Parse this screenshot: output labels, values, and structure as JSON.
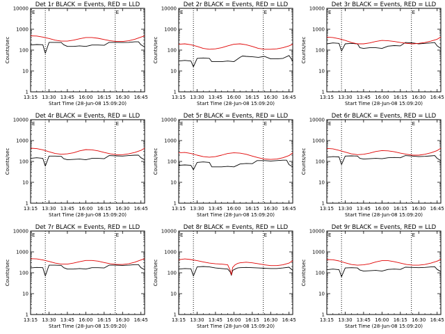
{
  "colors": {
    "events": "#000000",
    "lld": "#e00000",
    "background": "#ffffff",
    "axes": "#000000"
  },
  "chart_data": {
    "type": "line",
    "scale": "log-y",
    "x_tick_labels": [
      "13:15",
      "13:30",
      "13:45",
      "16:00",
      "16:15",
      "16:30",
      "16:45"
    ],
    "x_ticks_minutes": [
      0,
      15,
      30,
      45,
      60,
      75,
      90
    ],
    "xlim_minutes": [
      0,
      93
    ],
    "ylim": [
      1,
      10000
    ],
    "y_tick_labels": [
      "1",
      "10",
      "100",
      "1000",
      "10000"
    ],
    "y_ticks": [
      1,
      10,
      100,
      1000,
      10000
    ],
    "ylabel": "Counts/sec",
    "xlabel": "Start Time (28-Jun-08 15:09:20)",
    "vertical_marks_minutes": [
      12,
      69
    ],
    "corner_marker": "E",
    "panels": [
      {
        "title": "Det 1r  BLACK = Events, RED = LLD",
        "series": [
          {
            "name": "Events",
            "color": "#000000",
            "x": [
              0,
              5,
              10,
              12,
              15,
              20,
              25,
              27,
              30,
              35,
              40,
              45,
              50,
              55,
              60,
              64,
              70,
              75,
              80,
              85,
              88,
              90,
              93
            ],
            "y": [
              175,
              185,
              180,
              70,
              235,
              235,
              230,
              180,
              150,
              150,
              160,
              150,
              175,
              175,
              170,
              235,
              235,
              230,
              235,
              250,
              250,
              180,
              140
            ]
          },
          {
            "name": "LLD",
            "color": "#e00000",
            "x": [
              0,
              5,
              10,
              15,
              20,
              25,
              30,
              35,
              40,
              45,
              50,
              55,
              60,
              65,
              70,
              75,
              80,
              85,
              90,
              93
            ],
            "y": [
              480,
              470,
              420,
              360,
              300,
              270,
              270,
              300,
              350,
              400,
              400,
              370,
              320,
              280,
              260,
              260,
              280,
              330,
              420,
              480
            ]
          }
        ]
      },
      {
        "title": "Det 2r  BLACK = Events, RED = LLD",
        "series": [
          {
            "name": "Events",
            "color": "#000000",
            "x": [
              0,
              5,
              10,
              12,
              15,
              20,
              25,
              27,
              30,
              35,
              40,
              45,
              50,
              52,
              55,
              60,
              65,
              70,
              75,
              80,
              85,
              90,
              93
            ],
            "y": [
              30,
              32,
              30,
              16,
              40,
              42,
              40,
              28,
              28,
              28,
              30,
              28,
              45,
              52,
              50,
              48,
              45,
              50,
              38,
              38,
              40,
              55,
              30
            ]
          },
          {
            "name": "LLD",
            "color": "#e00000",
            "x": [
              0,
              5,
              10,
              15,
              20,
              25,
              30,
              35,
              40,
              45,
              50,
              55,
              60,
              65,
              70,
              75,
              80,
              85,
              90,
              93
            ],
            "y": [
              190,
              200,
              180,
              150,
              120,
              110,
              115,
              130,
              160,
              190,
              200,
              180,
              150,
              120,
              110,
              110,
              115,
              130,
              160,
              190
            ]
          }
        ]
      },
      {
        "title": "Det 3r  BLACK = Events, RED = LLD",
        "series": [
          {
            "name": "Events",
            "color": "#000000",
            "x": [
              0,
              5,
              10,
              12,
              15,
              20,
              25,
              27,
              30,
              35,
              40,
              45,
              50,
              55,
              60,
              64,
              70,
              75,
              80,
              85,
              88,
              90,
              93
            ],
            "y": [
              200,
              220,
              210,
              90,
              200,
              210,
              200,
              130,
              120,
              130,
              130,
              120,
              155,
              165,
              160,
              230,
              220,
              200,
              210,
              220,
              230,
              160,
              120
            ]
          },
          {
            "name": "LLD",
            "color": "#e00000",
            "x": [
              0,
              5,
              10,
              15,
              20,
              25,
              30,
              35,
              40,
              45,
              50,
              55,
              60,
              65,
              70,
              75,
              80,
              85,
              90,
              93
            ],
            "y": [
              420,
              400,
              350,
              290,
              230,
              200,
              200,
              220,
              260,
              290,
              280,
              260,
              230,
              210,
              200,
              210,
              230,
              270,
              330,
              420
            ]
          }
        ]
      },
      {
        "title": "Det 4r  BLACK = Events, RED = LLD",
        "series": [
          {
            "name": "Events",
            "color": "#000000",
            "x": [
              0,
              5,
              10,
              12,
              15,
              20,
              25,
              27,
              30,
              35,
              40,
              45,
              50,
              55,
              60,
              64,
              70,
              75,
              80,
              85,
              88,
              90,
              93
            ],
            "y": [
              140,
              150,
              140,
              60,
              180,
              180,
              175,
              135,
              120,
              125,
              130,
              120,
              140,
              140,
              135,
              190,
              185,
              180,
              190,
              200,
              200,
              150,
              120
            ]
          },
          {
            "name": "LLD",
            "color": "#e00000",
            "x": [
              0,
              5,
              10,
              15,
              20,
              25,
              30,
              35,
              40,
              45,
              50,
              55,
              60,
              65,
              70,
              75,
              80,
              85,
              90,
              93
            ],
            "y": [
              430,
              410,
              360,
              290,
              240,
              220,
              230,
              260,
              320,
              370,
              360,
              320,
              270,
              230,
              210,
              210,
              230,
              270,
              340,
              430
            ]
          }
        ]
      },
      {
        "title": "Det 5r  BLACK = Events, RED = LLD",
        "series": [
          {
            "name": "Events",
            "color": "#000000",
            "x": [
              0,
              5,
              10,
              12,
              15,
              20,
              25,
              27,
              30,
              35,
              40,
              45,
              50,
              55,
              60,
              64,
              70,
              75,
              80,
              85,
              88,
              90,
              93
            ],
            "y": [
              65,
              68,
              65,
              40,
              90,
              95,
              90,
              55,
              55,
              55,
              58,
              55,
              75,
              80,
              78,
              110,
              110,
              105,
              110,
              115,
              115,
              70,
              55
            ]
          },
          {
            "name": "LLD",
            "color": "#e00000",
            "x": [
              0,
              5,
              10,
              15,
              20,
              25,
              30,
              35,
              40,
              45,
              50,
              55,
              60,
              65,
              70,
              75,
              80,
              85,
              90,
              93
            ],
            "y": [
              260,
              270,
              240,
              200,
              170,
              160,
              170,
              200,
              240,
              260,
              250,
              220,
              180,
              150,
              130,
              125,
              130,
              150,
              190,
              260
            ]
          }
        ]
      },
      {
        "title": "Det 6r  BLACK = Events, RED = LLD",
        "series": [
          {
            "name": "Events",
            "color": "#000000",
            "x": [
              0,
              5,
              10,
              12,
              15,
              20,
              25,
              27,
              30,
              35,
              40,
              45,
              50,
              55,
              60,
              64,
              70,
              75,
              80,
              85,
              88,
              90,
              93
            ],
            "y": [
              160,
              170,
              165,
              70,
              180,
              185,
              180,
              140,
              130,
              135,
              140,
              135,
              150,
              155,
              150,
              190,
              180,
              170,
              175,
              185,
              190,
              140,
              110
            ]
          },
          {
            "name": "LLD",
            "color": "#e00000",
            "x": [
              0,
              5,
              10,
              15,
              20,
              25,
              30,
              35,
              40,
              45,
              50,
              55,
              60,
              65,
              70,
              75,
              80,
              85,
              90,
              93
            ],
            "y": [
              420,
              400,
              340,
              280,
              230,
              210,
              220,
              250,
              300,
              330,
              320,
              290,
              250,
              220,
              200,
              200,
              220,
              260,
              330,
              430
            ]
          }
        ]
      },
      {
        "title": "Det 7r  BLACK = Events, RED = LLD",
        "series": [
          {
            "name": "Events",
            "color": "#000000",
            "x": [
              0,
              5,
              10,
              12,
              15,
              20,
              25,
              27,
              30,
              35,
              40,
              45,
              50,
              55,
              60,
              64,
              70,
              75,
              80,
              85,
              88,
              90,
              93
            ],
            "y": [
              170,
              180,
              175,
              70,
              230,
              230,
              225,
              175,
              150,
              150,
              160,
              150,
              175,
              175,
              170,
              230,
              230,
              225,
              230,
              245,
              245,
              175,
              140
            ]
          },
          {
            "name": "LLD",
            "color": "#e00000",
            "x": [
              0,
              5,
              10,
              15,
              20,
              25,
              30,
              35,
              40,
              45,
              50,
              55,
              60,
              65,
              70,
              75,
              80,
              85,
              90,
              93
            ],
            "y": [
              470,
              460,
              410,
              350,
              290,
              260,
              260,
              290,
              340,
              390,
              390,
              360,
              310,
              270,
              250,
              250,
              270,
              320,
              410,
              470
            ]
          }
        ]
      },
      {
        "title": "Det 8r  BLACK = Events, RED = LLD",
        "series": [
          {
            "name": "Events",
            "color": "#000000",
            "x": [
              0,
              5,
              10,
              12,
              15,
              20,
              25,
              30,
              35,
              40,
              42,
              43,
              44,
              46,
              48,
              50,
              55,
              60,
              65,
              70,
              75,
              80,
              85,
              90,
              93
            ],
            "y": [
              150,
              160,
              155,
              70,
              190,
              200,
              190,
              170,
              160,
              150,
              110,
              75,
              130,
              150,
              170,
              175,
              180,
              175,
              170,
              165,
              160,
              160,
              170,
              185,
              130
            ]
          },
          {
            "name": "LLD",
            "color": "#e00000",
            "x": [
              0,
              5,
              10,
              15,
              20,
              25,
              30,
              35,
              40,
              42,
              43,
              44,
              46,
              48,
              50,
              55,
              60,
              65,
              70,
              75,
              80,
              85,
              90,
              93
            ],
            "y": [
              420,
              460,
              430,
              380,
              330,
              290,
              270,
              260,
              240,
              130,
              80,
              180,
              240,
              280,
              300,
              320,
              300,
              270,
              240,
              220,
              220,
              240,
              290,
              380
            ]
          }
        ]
      },
      {
        "title": "Det 9r  BLACK = Events, RED = LLD",
        "series": [
          {
            "name": "Events",
            "color": "#000000",
            "x": [
              0,
              5,
              10,
              12,
              15,
              20,
              25,
              27,
              30,
              35,
              40,
              45,
              50,
              55,
              60,
              64,
              70,
              75,
              80,
              85,
              88,
              90,
              93
            ],
            "y": [
              140,
              150,
              140,
              65,
              170,
              175,
              170,
              135,
              120,
              125,
              130,
              120,
              145,
              150,
              145,
              185,
              180,
              175,
              180,
              190,
              195,
              145,
              115
            ]
          },
          {
            "name": "LLD",
            "color": "#e00000",
            "x": [
              0,
              5,
              10,
              15,
              20,
              25,
              30,
              35,
              40,
              45,
              50,
              55,
              60,
              65,
              70,
              75,
              80,
              85,
              90,
              93
            ],
            "y": [
              430,
              420,
              370,
              300,
              250,
              230,
              240,
              270,
              330,
              380,
              380,
              340,
              290,
              250,
              230,
              230,
              250,
              290,
              360,
              440
            ]
          }
        ]
      }
    ]
  }
}
